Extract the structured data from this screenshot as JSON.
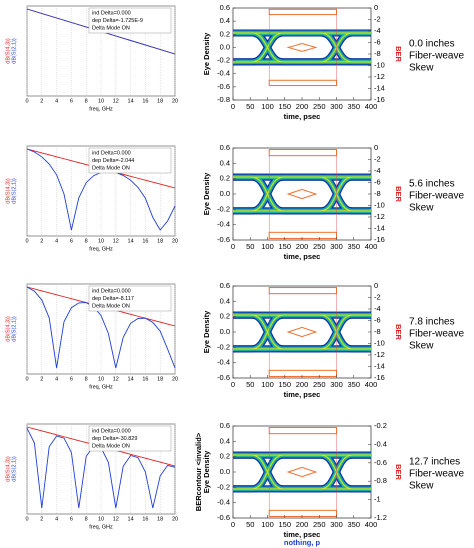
{
  "chart_data": [
    {
      "type": "line",
      "x_label": "freq, GHz",
      "y_labels": [
        "dB(S(4,3))",
        "dB(S(2,1))"
      ],
      "annotations": [
        "ind Delta=0.000",
        "dep Delta=-1.725E-9",
        "Delta Mode ON"
      ],
      "x": [
        0,
        20
      ],
      "series": [
        {
          "color": "#e02020",
          "values": [
            -1,
            -16
          ]
        },
        {
          "color": "#1f3fd6",
          "values": [
            -1,
            -16
          ]
        }
      ],
      "xlim": [
        0,
        20
      ],
      "ylim": [
        -30,
        0
      ],
      "xticks": [
        0,
        2,
        4,
        6,
        8,
        10,
        12,
        14,
        16,
        18,
        20
      ],
      "grid": true
    },
    {
      "type": "eye",
      "y_labels": [
        "Eye Density"
      ],
      "y2_label": "BER",
      "x_labels": [
        "time, psec"
      ],
      "caption": [
        "0.0 inches",
        "Fiber-weave",
        "Skew"
      ],
      "xlim": [
        0,
        400
      ],
      "xticks": [
        0,
        50,
        100,
        150,
        200,
        250,
        300,
        350,
        400
      ],
      "ylim": [
        -0.8,
        0.6
      ],
      "yticks": [
        0.6,
        0.4,
        0.2,
        {
          "value": 0,
          "label": "0.0"
        },
        -0.2,
        -0.4,
        -0.6,
        -0.8
      ],
      "y2lim": [
        -16,
        0
      ],
      "y2ticks": [
        0,
        -2,
        -4,
        -6,
        -8,
        -10,
        -12,
        -14,
        -16
      ]
    },
    {
      "type": "line",
      "x_label": "freq, GHz",
      "y_labels": [
        "dB(S(4,3))",
        "dB(S(2,1))"
      ],
      "annotations": [
        "ind Delta=0.000",
        "dep Delta=-2.044",
        "Delta Mode ON"
      ],
      "x": [
        0,
        1,
        2,
        3,
        4,
        5,
        6,
        7,
        8,
        9,
        10,
        11,
        12,
        13,
        14,
        15,
        16,
        17,
        18,
        19,
        20
      ],
      "series": [
        {
          "color": "#e02020",
          "values": [
            -1,
            -1.65,
            -2.3,
            -2.95,
            -3.6,
            -4.25,
            -4.9,
            -5.55,
            -6.2,
            -6.85,
            -7.5,
            -8.15,
            -8.8,
            -9.45,
            -10.1,
            -10.75,
            -11.4,
            -12.05,
            -12.7,
            -13.35,
            -14
          ]
        },
        {
          "color": "#1f3fd6",
          "values": [
            -1,
            -2,
            -3.6,
            -6,
            -9.6,
            -16,
            -28,
            -17.3,
            -12.2,
            -9.9,
            -8.8,
            -8.5,
            -8.8,
            -9.8,
            -11.4,
            -13.8,
            -17.4,
            -23.8,
            -28,
            -25,
            -20
          ]
        }
      ],
      "xlim": [
        0,
        20
      ],
      "ylim": [
        -30,
        0
      ],
      "xticks": [
        0,
        2,
        4,
        6,
        8,
        10,
        12,
        14,
        16,
        18,
        20
      ],
      "grid": true
    },
    {
      "type": "eye",
      "y_labels": [
        "Eye Density"
      ],
      "y2_label": "BER",
      "x_labels": [
        "time, psec"
      ],
      "caption": [
        "5.6 inches",
        "Fiber-weave",
        "Skew"
      ],
      "xlim": [
        0,
        400
      ],
      "xticks": [
        0,
        50,
        100,
        150,
        200,
        250,
        300,
        350,
        400
      ],
      "ylim": [
        -0.6,
        0.6
      ],
      "yticks": [
        0.6,
        0.4,
        0.2,
        {
          "value": 0,
          "label": "0.0"
        },
        -0.2,
        -0.4,
        -0.6
      ],
      "y2lim": [
        -16,
        0
      ],
      "y2ticks": [
        0,
        -2,
        -4,
        -6,
        -8,
        -10,
        -12,
        -14,
        -16
      ]
    },
    {
      "type": "line",
      "x_label": "freq, GHz",
      "y_labels": [
        "dB(S(4,3))",
        "dB(S(2,1))"
      ],
      "annotations": [
        "ind Delta=0.000",
        "dep Delta=-8.117",
        "Delta Mode ON"
      ],
      "x": [
        0,
        1,
        2,
        3,
        4,
        5,
        6,
        7,
        8,
        9,
        10,
        11,
        12,
        13,
        14,
        15,
        16,
        17,
        18,
        19,
        20
      ],
      "series": [
        {
          "color": "#e02020",
          "values": [
            -1,
            -1.65,
            -2.3,
            -2.95,
            -3.6,
            -4.25,
            -4.9,
            -5.55,
            -6.2,
            -6.85,
            -7.5,
            -8.15,
            -8.8,
            -9.45,
            -10.1,
            -10.75,
            -11.4,
            -12.05,
            -12.7,
            -13.35,
            -14
          ]
        },
        {
          "color": "#1f3fd6",
          "values": [
            -1,
            -2.4,
            -5.3,
            -11.3,
            -28,
            -12.6,
            -7.9,
            -6.3,
            -6.2,
            -7.6,
            -10.5,
            -16.5,
            -28,
            -17.8,
            -13.1,
            -11.5,
            -11.4,
            -12.8,
            -15.7,
            -21.7,
            -28
          ]
        }
      ],
      "xlim": [
        0,
        20
      ],
      "ylim": [
        -30,
        0
      ],
      "xticks": [
        0,
        2,
        4,
        6,
        8,
        10,
        12,
        14,
        16,
        18,
        20
      ],
      "grid": true
    },
    {
      "type": "eye",
      "y_labels": [
        "Eye Density"
      ],
      "y2_label": "BER",
      "x_labels": [
        "time, psec"
      ],
      "caption": [
        "7.8 inches",
        "Fiber-weave",
        "Skew"
      ],
      "xlim": [
        0,
        400
      ],
      "xticks": [
        0,
        50,
        100,
        150,
        200,
        250,
        300,
        350,
        400
      ],
      "ylim": [
        -0.6,
        0.6
      ],
      "yticks": [
        0.6,
        0.4,
        0.2,
        {
          "value": 0,
          "label": "0.0"
        },
        -0.2,
        -0.4,
        -0.6
      ],
      "y2lim": [
        -16,
        0
      ],
      "y2ticks": [
        0,
        -2,
        -4,
        -6,
        -8,
        -10,
        -12,
        -14,
        -16
      ]
    },
    {
      "type": "line",
      "x_label": "freq, GHz",
      "y_labels": [
        "dB(S(4,3))",
        "dB(S(2,1))"
      ],
      "annotations": [
        "ind Delta=0.000",
        "dep Delta=-30.829",
        "Delta Mode ON"
      ],
      "x": [
        0,
        1,
        2,
        3,
        4,
        5,
        6,
        7,
        8,
        9,
        10,
        11,
        12,
        13,
        14,
        15,
        16,
        17,
        18,
        19,
        20
      ],
      "series": [
        {
          "color": "#e02020",
          "values": [
            -1,
            -1.65,
            -2.3,
            -2.95,
            -3.6,
            -4.25,
            -4.9,
            -5.55,
            -6.2,
            -6.85,
            -7.5,
            -8.15,
            -8.8,
            -9.45,
            -10.1,
            -10.75,
            -11.4,
            -12.05,
            -12.7,
            -13.35,
            -14
          ]
        },
        {
          "color": "#1f3fd6",
          "values": [
            -1.4,
            -6.3,
            -28,
            -7.6,
            -4,
            -4.7,
            -9.5,
            -28,
            -10.8,
            -7.3,
            -7.9,
            -12.8,
            -28,
            -14.1,
            -10.5,
            -11.2,
            -16,
            -28,
            -17.3,
            -13.8,
            -14.4
          ]
        }
      ],
      "xlim": [
        0,
        20
      ],
      "ylim": [
        -30,
        0
      ],
      "xticks": [
        0,
        2,
        4,
        6,
        8,
        10,
        12,
        14,
        16,
        18,
        20
      ],
      "grid": true
    },
    {
      "type": "eye",
      "y_labels": [
        "BERcontour <invalid>",
        "Eye Density"
      ],
      "y2_label": "BER",
      "x_labels": [
        "time, psec",
        "nothing, p"
      ],
      "caption": [
        "12.7 inches",
        "Fiber-weave",
        "Skew"
      ],
      "xlim": [
        0,
        400
      ],
      "xticks": [
        0,
        50,
        100,
        150,
        200,
        250,
        300,
        350,
        400
      ],
      "ylim": [
        -0.6,
        0.6
      ],
      "yticks": [
        0.6,
        0.4,
        0.2,
        {
          "value": 0,
          "label": "0.0"
        },
        -0.2,
        -0.4,
        -0.6
      ],
      "y2lim": [
        -1.2,
        -0.2
      ],
      "y2ticks": [
        -0.2,
        -0.4,
        -0.6,
        -0.8,
        -1.0,
        -1.2
      ]
    }
  ]
}
